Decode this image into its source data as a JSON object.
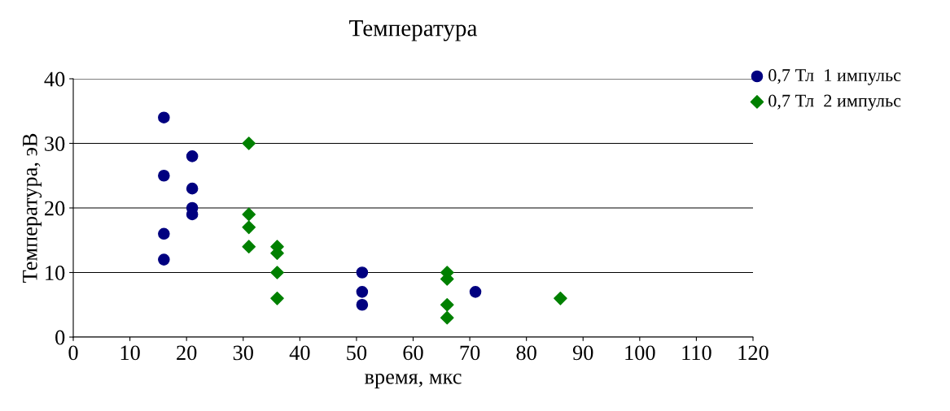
{
  "chart_data": {
    "type": "scatter",
    "title": "Температура",
    "xlabel": "время, мкс",
    "ylabel": "Температура, эВ",
    "x": [
      16,
      16,
      16,
      16,
      21,
      21,
      21,
      21,
      51,
      51,
      51,
      71
    ],
    "series": [
      {
        "name": "0,7 Тл  1 импульс",
        "color": "#000080",
        "marker": "circle",
        "values": [
          34,
          25,
          16,
          12,
          28,
          23,
          20,
          19,
          10,
          7,
          5,
          7
        ]
      },
      {
        "name": "0,7 Тл  2 импульс",
        "color": "#008000",
        "marker": "diamond",
        "x": [
          31,
          31,
          31,
          31,
          36,
          36,
          36,
          36,
          66,
          66,
          66,
          66,
          86
        ],
        "values": [
          30,
          19,
          17,
          14,
          14,
          13,
          10,
          6,
          10,
          9,
          5,
          3,
          6
        ]
      }
    ],
    "xlim": [
      0,
      120
    ],
    "xticks": [
      0,
      10,
      20,
      30,
      40,
      50,
      60,
      70,
      80,
      90,
      100,
      110,
      120
    ],
    "ylim": [
      0,
      40
    ],
    "yticks": [
      0,
      10,
      20,
      30,
      40
    ],
    "grid": "y",
    "legend": "top right"
  }
}
